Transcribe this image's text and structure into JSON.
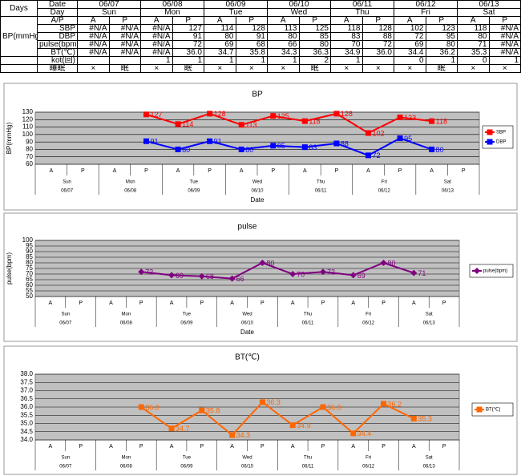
{
  "table": {
    "days_label": "Days",
    "bp_label": "BP(mmHg)",
    "date_label": "Date",
    "dates": [
      "06/07",
      "06/08",
      "06/09",
      "06/10",
      "06/11",
      "06/12",
      "06/13"
    ],
    "day_label": "Day",
    "days": [
      "Sun",
      "Mon",
      "Tue",
      "Wed",
      "Thu",
      "Fri",
      "Sat"
    ],
    "rows": [
      {
        "label": "A/P",
        "cells": [
          "A",
          "P",
          "A",
          "P",
          "A",
          "P",
          "A",
          "P",
          "A",
          "P",
          "A",
          "P",
          "A",
          "P"
        ]
      },
      {
        "label": "SBP",
        "cells": [
          "#N/A",
          "#N/A",
          "#N/A",
          "127",
          "114",
          "128",
          "113",
          "125",
          "118",
          "128",
          "102",
          "123",
          "118",
          "#N/A"
        ]
      },
      {
        "label": "DBP",
        "cells": [
          "#N/A",
          "#N/A",
          "#N/A",
          "91",
          "80",
          "91",
          "80",
          "85",
          "83",
          "88",
          "72",
          "95",
          "80",
          "#N/A"
        ]
      },
      {
        "label": "pulse(bpm)",
        "cells": [
          "#N/A",
          "#N/A",
          "#N/A",
          "72",
          "69",
          "68",
          "66",
          "80",
          "70",
          "72",
          "69",
          "80",
          "71",
          "#N/A"
        ]
      },
      {
        "label": "BT(℃)",
        "cells": [
          "#N/A",
          "#N/A",
          "#N/A",
          "36.0",
          "34.7",
          "35.8",
          "34.3",
          "36.3",
          "34.9",
          "36.0",
          "34.4",
          "36.2",
          "35.3",
          "#N/A"
        ]
      },
      {
        "label": "kot(回)",
        "cells": [
          null,
          null,
          "1",
          "1",
          "1",
          "1",
          "1",
          "2",
          "1",
          null,
          "0",
          "1",
          "0",
          "1"
        ]
      },
      {
        "label": "睡眠",
        "cells": [
          "×",
          "眠",
          "×",
          "眠",
          "×",
          "×",
          "×",
          "眠",
          "×",
          "×",
          "×",
          "眠",
          "×",
          "×"
        ]
      }
    ]
  },
  "chart_data": [
    {
      "type": "line",
      "title": "BP",
      "xlabel": "Date",
      "ylabel": "BP(mmHg)",
      "categories": [
        "A",
        "P",
        "A",
        "P",
        "A",
        "P",
        "A",
        "P",
        "A",
        "P",
        "A",
        "P",
        "A",
        "P"
      ],
      "groups": [
        {
          "day": "Sun",
          "date": "06/07"
        },
        {
          "day": "Mon",
          "date": "06/08"
        },
        {
          "day": "Tue",
          "date": "06/09"
        },
        {
          "day": "Wed",
          "date": "06/10"
        },
        {
          "day": "Thu",
          "date": "06/11"
        },
        {
          "day": "Fri",
          "date": "06/12"
        },
        {
          "day": "Sat",
          "date": "06/13"
        }
      ],
      "series": [
        {
          "name": "SBP",
          "color": "#ff0000",
          "marker": "square",
          "values": [
            null,
            null,
            null,
            127,
            114,
            128,
            113,
            125,
            118,
            128,
            102,
            123,
            118,
            null
          ]
        },
        {
          "name": "DBP",
          "color": "#0000ff",
          "marker": "square",
          "values": [
            null,
            null,
            null,
            91,
            80,
            91,
            80,
            85,
            83,
            88,
            72,
            95,
            80,
            null
          ]
        }
      ],
      "ylim": [
        60,
        130
      ],
      "yticks": [
        60,
        70,
        80,
        90,
        100,
        110,
        120,
        130
      ],
      "grid": true,
      "legend": "right"
    },
    {
      "type": "line",
      "title": "pulse",
      "xlabel": "Date",
      "ylabel": "pulse(bpm)",
      "categories": [
        "A",
        "P",
        "A",
        "P",
        "A",
        "P",
        "A",
        "P",
        "A",
        "P",
        "A",
        "P",
        "A",
        "P"
      ],
      "groups": [
        {
          "day": "Sun",
          "date": "06/07"
        },
        {
          "day": "Mon",
          "date": "06/08"
        },
        {
          "day": "Tue",
          "date": "06/09"
        },
        {
          "day": "Wed",
          "date": "06/10"
        },
        {
          "day": "Thu",
          "date": "06/11"
        },
        {
          "day": "Fri",
          "date": "06/12"
        },
        {
          "day": "Sat",
          "date": "06/13"
        }
      ],
      "series": [
        {
          "name": "pulse(bpm)",
          "color": "#800080",
          "marker": "diamond",
          "values": [
            null,
            null,
            null,
            72,
            69,
            68,
            66,
            80,
            70,
            72,
            69,
            80,
            71,
            null
          ]
        }
      ],
      "ylim": [
        50,
        100
      ],
      "yticks": [
        50,
        55,
        60,
        65,
        70,
        75,
        80,
        85,
        90,
        95,
        100
      ],
      "grid": true,
      "legend": "right"
    },
    {
      "type": "line",
      "title": "BT(℃)",
      "categories": [
        "A",
        "P",
        "A",
        "P",
        "A",
        "P",
        "A",
        "P",
        "A",
        "P",
        "A",
        "P",
        "A",
        "P"
      ],
      "groups": [
        {
          "day": "Sun",
          "date": "06/07"
        },
        {
          "day": "Mon",
          "date": "06/08"
        },
        {
          "day": "Tue",
          "date": "06/09"
        },
        {
          "day": "Wed",
          "date": "06/10"
        },
        {
          "day": "Thu",
          "date": "06/11"
        },
        {
          "day": "Fri",
          "date": "06/12"
        },
        {
          "day": "Sat",
          "date": "06/13"
        }
      ],
      "series": [
        {
          "name": "BT(℃)",
          "color": "#ff6600",
          "marker": "square",
          "values": [
            null,
            null,
            null,
            36,
            34.7,
            35.8,
            34.3,
            36.3,
            34.9,
            36,
            34.4,
            36.2,
            35.3,
            null
          ],
          "value_labels": [
            null,
            null,
            null,
            "36.0",
            "34.7",
            "35.8",
            "34.3",
            "36.3",
            "34.9",
            "36.0",
            "34.4",
            "36.2",
            "35.3",
            null
          ]
        }
      ],
      "ylim": [
        34,
        38
      ],
      "yticks": [
        {
          "value": 34,
          "label": "34.0"
        },
        {
          "value": 34.5,
          "label": "34.5"
        },
        {
          "value": 35,
          "label": "35.0"
        },
        {
          "value": 35.5,
          "label": "35.5"
        },
        {
          "value": 36,
          "label": "36.0"
        },
        {
          "value": 36.5,
          "label": "36.5"
        },
        {
          "value": 37,
          "label": "37.0"
        },
        {
          "value": 37.5,
          "label": "37.5"
        },
        {
          "value": 38,
          "label": "38.0"
        }
      ],
      "grid": true,
      "legend": "right"
    }
  ]
}
